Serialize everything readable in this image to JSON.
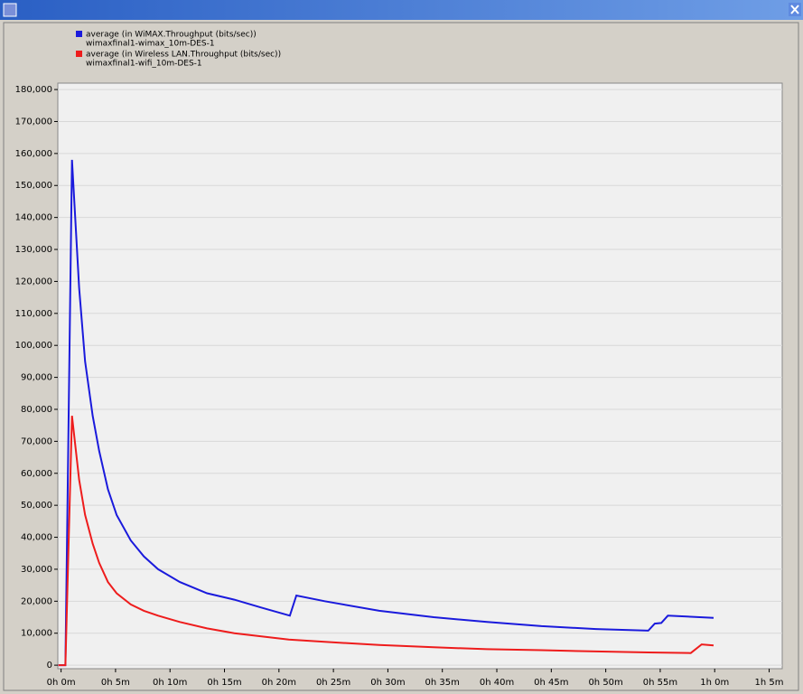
{
  "chart_data": {
    "type": "line",
    "series": [
      {
        "name": "average (in WiMAX.Throughput (bits/sec))",
        "scenario": "wimaxfinal1-wimax_10m-DES-1",
        "color": "#1a1adc",
        "x": [
          -0.25,
          0.4,
          1.0,
          1.66,
          2.2,
          2.9,
          3.5,
          4.3,
          5.1,
          6.4,
          7.6,
          8.9,
          10.9,
          13.4,
          15.9,
          18.4,
          21.0,
          21.6,
          24.2,
          29.2,
          34.2,
          39.1,
          44.1,
          49.1,
          53.9,
          54.5,
          55.1,
          55.7,
          59.9
        ],
        "values": [
          0,
          0,
          158000,
          118000,
          95000,
          78000,
          67000,
          55000,
          47000,
          39000,
          34000,
          30000,
          26000,
          22500,
          20500,
          18000,
          15500,
          21800,
          20000,
          17000,
          15000,
          13500,
          12200,
          11300,
          10800,
          13000,
          13200,
          15500,
          14800
        ]
      },
      {
        "name": "average (in Wireless LAN.Throughput (bits/sec))",
        "scenario": "wimaxfinal1-wifi_10m-DES-1",
        "color": "#ee1c1c",
        "x": [
          -0.25,
          0.4,
          1.0,
          1.66,
          2.2,
          2.9,
          3.5,
          4.3,
          5.1,
          6.4,
          7.6,
          8.9,
          10.9,
          13.4,
          15.9,
          18.4,
          20.9,
          24.2,
          29.2,
          34.2,
          39.1,
          44.1,
          49.1,
          53.9,
          57.8,
          58.8,
          59.9
        ],
        "values": [
          0,
          0,
          78000,
          58000,
          47000,
          38000,
          32000,
          26000,
          22500,
          19000,
          17000,
          15500,
          13500,
          11500,
          10000,
          9000,
          8000,
          7300,
          6300,
          5600,
          5000,
          4700,
          4300,
          4000,
          3800,
          6500,
          6200
        ]
      }
    ],
    "xlim": [
      -0.3,
      66.2
    ],
    "xticks": [
      {
        "value": 0,
        "label": "0h 0m"
      },
      {
        "value": 5,
        "label": "0h 5m"
      },
      {
        "value": 10,
        "label": "0h 10m"
      },
      {
        "value": 15,
        "label": "0h 15m"
      },
      {
        "value": 20,
        "label": "0h 20m"
      },
      {
        "value": 25,
        "label": "0h 25m"
      },
      {
        "value": 30,
        "label": "0h 30m"
      },
      {
        "value": 35,
        "label": "0h 35m"
      },
      {
        "value": 40,
        "label": "0h 40m"
      },
      {
        "value": 45,
        "label": "0h 45m"
      },
      {
        "value": 50,
        "label": "0h 50m"
      },
      {
        "value": 55,
        "label": "0h 55m"
      },
      {
        "value": 60,
        "label": "1h 0m"
      },
      {
        "value": 65,
        "label": "1h 5m"
      }
    ],
    "ylim": [
      -1100,
      182000
    ],
    "yticks": [
      0,
      {
        "value": 10000,
        "label": "10,000"
      },
      {
        "value": 20000,
        "label": "20,000"
      },
      {
        "value": 30000,
        "label": "30,000"
      },
      {
        "value": 40000,
        "label": "40,000"
      },
      {
        "value": 50000,
        "label": "50,000"
      },
      {
        "value": 60000,
        "label": "60,000"
      },
      {
        "value": 70000,
        "label": "70,000"
      },
      {
        "value": 80000,
        "label": "80,000"
      },
      {
        "value": 90000,
        "label": "90,000"
      },
      {
        "value": 100000,
        "label": "100,000"
      },
      {
        "value": 110000,
        "label": "110,000"
      },
      {
        "value": 120000,
        "label": "120,000"
      },
      {
        "value": 130000,
        "label": "130,000"
      },
      {
        "value": 140000,
        "label": "140,000"
      },
      {
        "value": 150000,
        "label": "150,000"
      },
      {
        "value": 160000,
        "label": "160,000"
      },
      {
        "value": 170000,
        "label": "170,000"
      },
      {
        "value": 180000,
        "label": "180,000"
      }
    ],
    "grid": true
  }
}
